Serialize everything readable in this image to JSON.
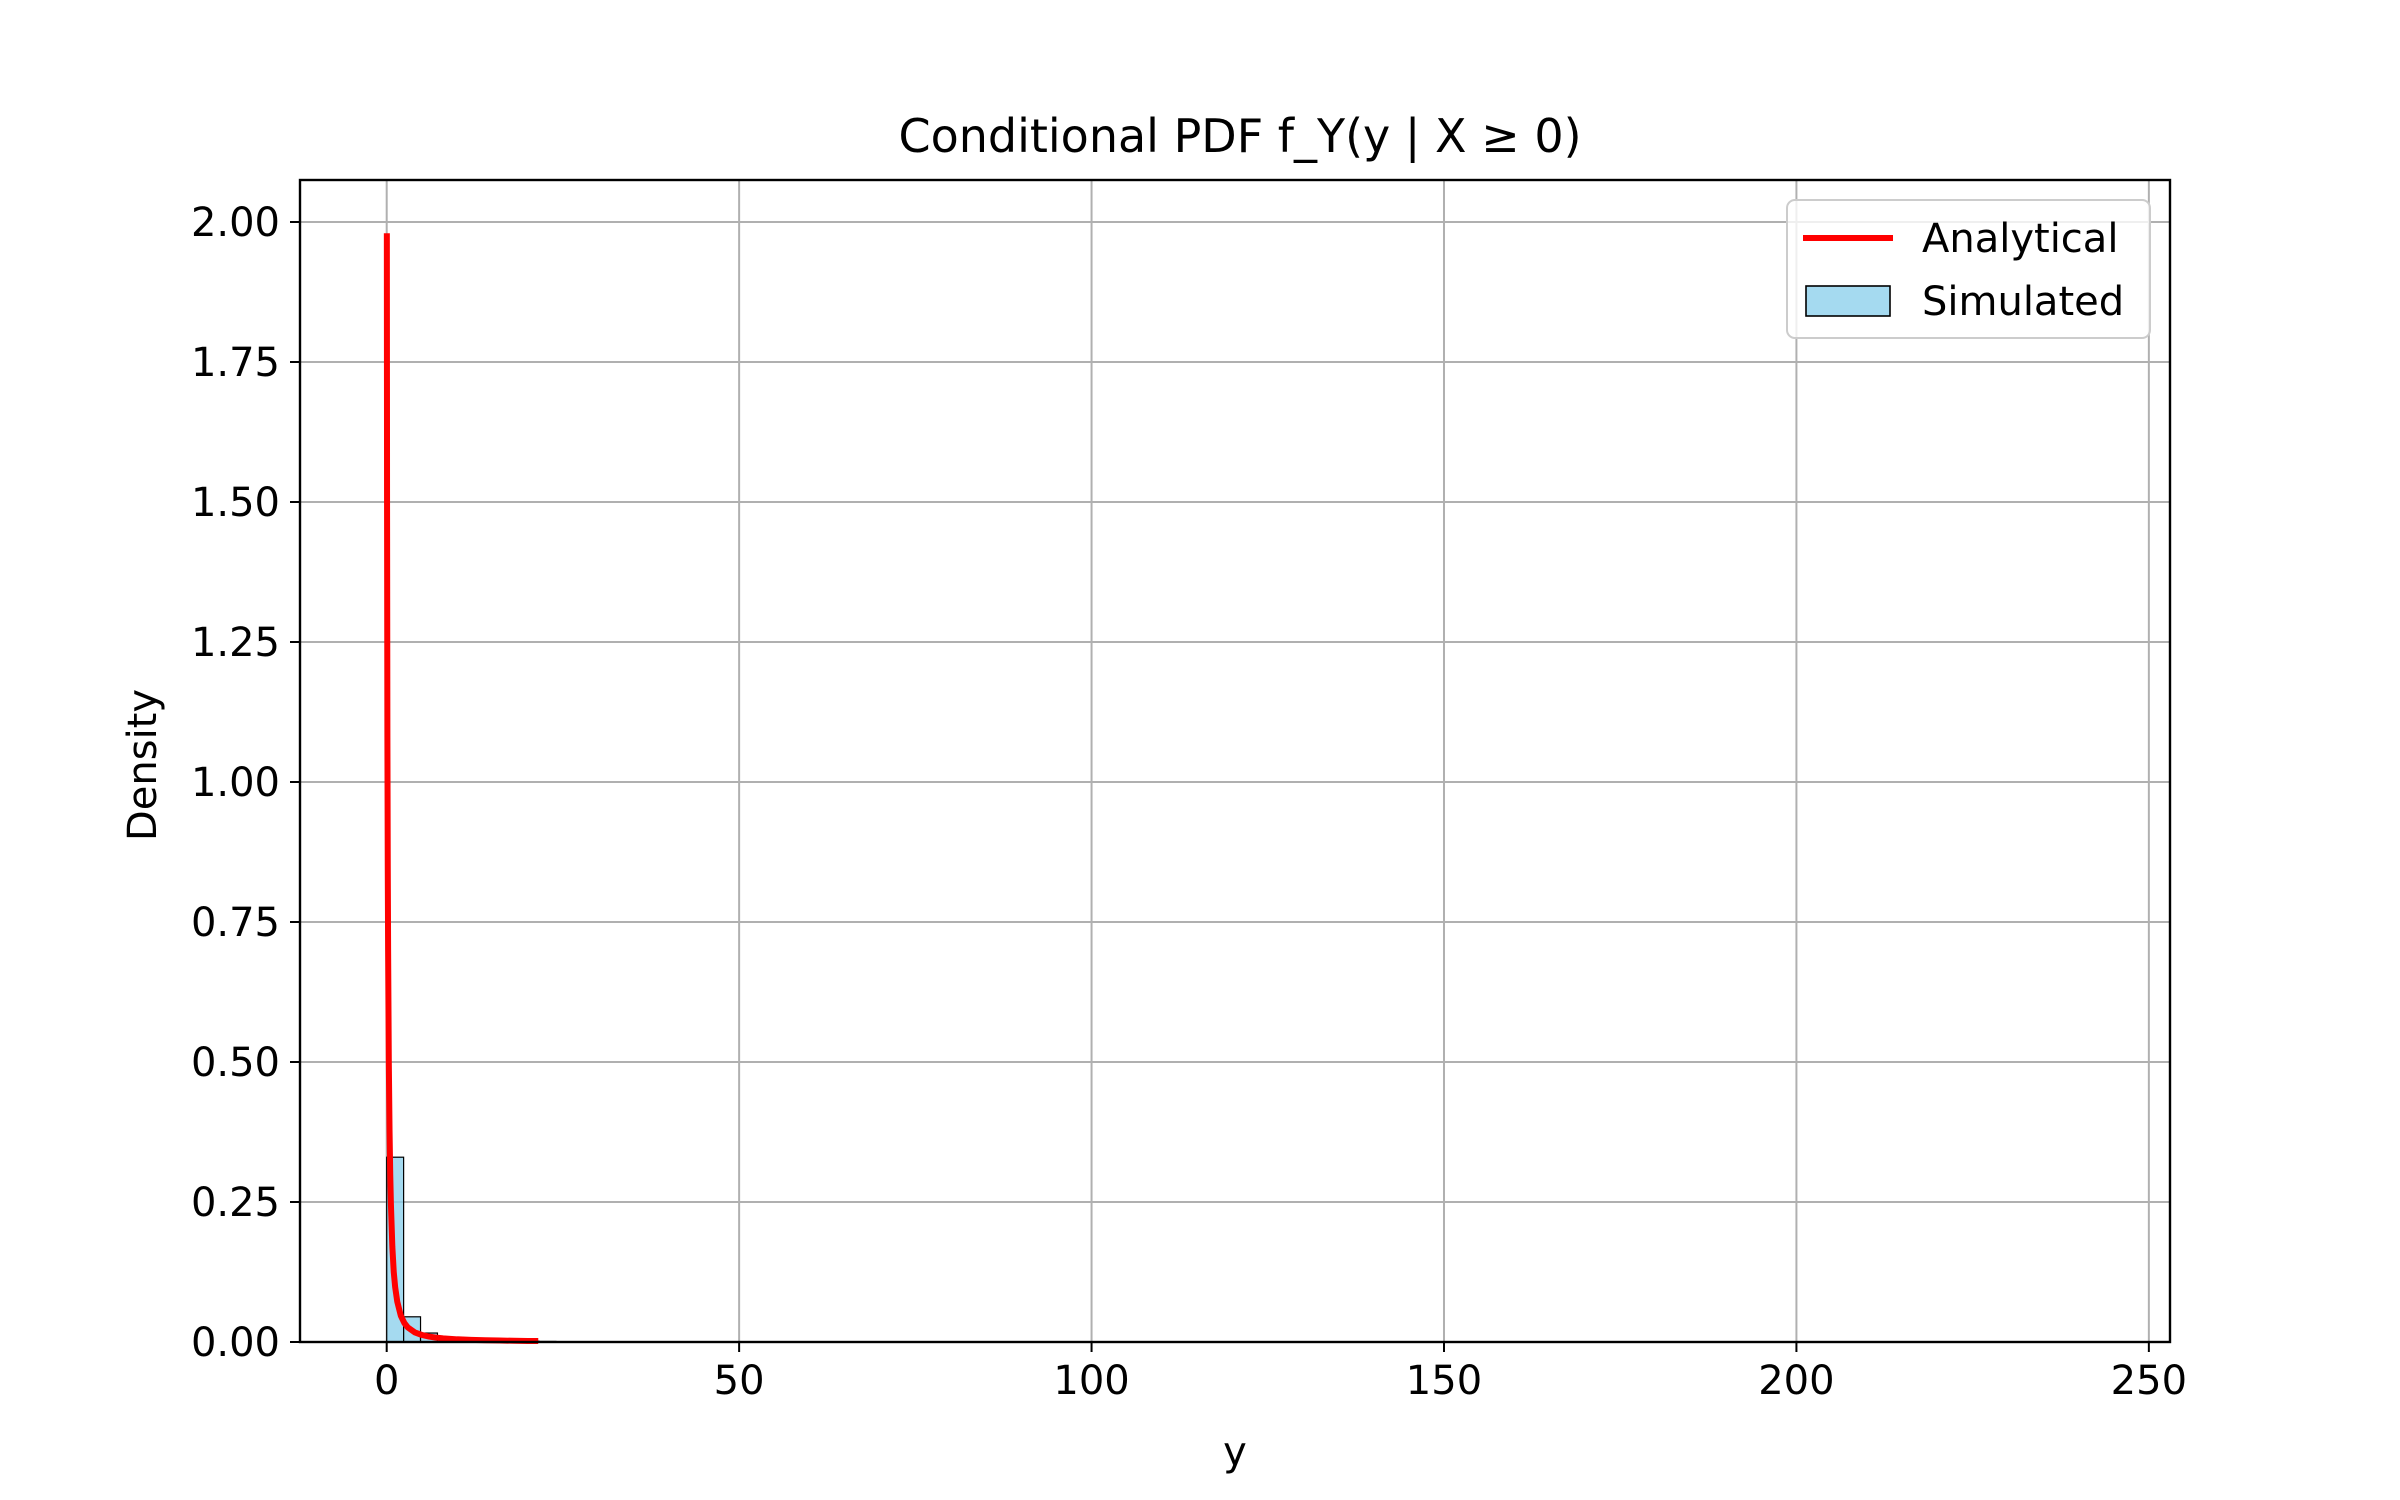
{
  "chart_data": {
    "type": "line",
    "title": "Conditional PDF f_Y(y | X ≥ 0)",
    "xlabel": "y",
    "ylabel": "Density",
    "xlim": [
      -12.3,
      253
    ],
    "ylim": [
      0,
      2.075
    ],
    "grid": true,
    "legend_position": "top-right",
    "x_ticks": [
      0,
      50,
      100,
      150,
      200,
      250
    ],
    "x_tick_labels": [
      "0",
      "50",
      "100",
      "150",
      "200",
      "250"
    ],
    "y_ticks": [
      0.0,
      0.25,
      0.5,
      0.75,
      1.0,
      1.25,
      1.5,
      1.75,
      2.0
    ],
    "y_tick_labels": [
      "0.00",
      "0.25",
      "0.50",
      "0.75",
      "1.00",
      "1.25",
      "1.50",
      "1.75",
      "2.00"
    ],
    "series": [
      {
        "name": "Analytical",
        "kind": "line",
        "color": "#ff0000",
        "x": [
          0.02,
          0.05,
          0.1,
          0.15,
          0.2,
          0.3,
          0.4,
          0.5,
          0.6,
          0.8,
          1.0,
          1.2,
          1.5,
          2.0,
          2.5,
          3.0,
          4.0,
          5.0,
          6.0,
          7.0,
          8.0,
          10.0,
          12.0,
          14.0,
          16.0,
          18.0,
          20.0,
          21.5
        ],
        "y": [
          1.98,
          1.5,
          1.08,
          0.85,
          0.7,
          0.5,
          0.38,
          0.3,
          0.245,
          0.17,
          0.125,
          0.098,
          0.072,
          0.047,
          0.034,
          0.026,
          0.017,
          0.0125,
          0.0097,
          0.0078,
          0.0065,
          0.0048,
          0.0038,
          0.0031,
          0.0026,
          0.0022,
          0.0019,
          0.0017
        ]
      },
      {
        "name": "Simulated",
        "kind": "histogram",
        "color": "#87ceeb",
        "bin_edges": [
          0,
          2.4,
          4.8,
          7.2,
          9.6,
          12.0,
          14.4,
          16.8,
          19.2,
          21.6,
          24.0
        ],
        "values": [
          0.33,
          0.045,
          0.016,
          0.008,
          0.005,
          0.0035,
          0.0025,
          0.002,
          0.0015,
          0.001
        ]
      }
    ]
  }
}
